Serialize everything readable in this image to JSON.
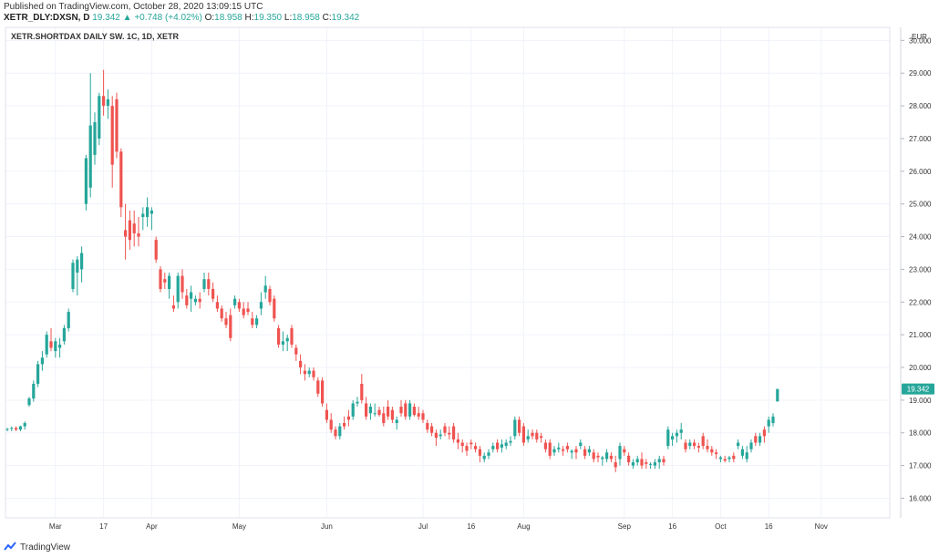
{
  "header": {
    "published": "Published on TradingView.com, October 28, 2020 13:09:15 UTC",
    "symbol": "XETR_DLY:DXSN, D",
    "last": "19.342",
    "change": "+0.748 (+4.02%)",
    "o_label": "O:",
    "o_value": "18.958",
    "h_label": "H:",
    "h_value": "19.350",
    "l_label": "L:",
    "l_value": "18.958",
    "c_label": "C:",
    "c_value": "19.342"
  },
  "footer": {
    "brand": "TradingView"
  },
  "colors": {
    "up": "#26a69a",
    "down": "#ef5350",
    "grid": "#f0f3fa",
    "axis": "#b2b5be"
  },
  "chart_data": {
    "type": "candlestick",
    "title": "XETR.SHORTDAX DAILY SW. 1C, 1D, XETR",
    "currency": "EUR",
    "last_price_label": "19.342",
    "ylim": [
      15.4,
      30.4
    ],
    "y_ticks": [
      "16.000",
      "17.000",
      "18.000",
      "19.000",
      "20.000",
      "21.000",
      "22.000",
      "23.000",
      "24.000",
      "25.000",
      "26.000",
      "27.000",
      "28.000",
      "29.000",
      "30.000"
    ],
    "x_ticks": [
      {
        "label": "Mar",
        "i": 11
      },
      {
        "label": "17",
        "i": 22
      },
      {
        "label": "Apr",
        "i": 33
      },
      {
        "label": "May",
        "i": 53
      },
      {
        "label": "Jun",
        "i": 73
      },
      {
        "label": "Jul",
        "i": 95
      },
      {
        "label": "16",
        "i": 106
      },
      {
        "label": "Aug",
        "i": 118
      },
      {
        "label": "Sep",
        "i": 141
      },
      {
        "label": "16",
        "i": 152
      },
      {
        "label": "Oct",
        "i": 163
      },
      {
        "label": "16",
        "i": 174
      },
      {
        "label": "Nov",
        "i": 186
      }
    ],
    "ohlc": [
      [
        18.1,
        18.15,
        18.05,
        18.12
      ],
      [
        18.12,
        18.2,
        18.05,
        18.15
      ],
      [
        18.15,
        18.2,
        18.05,
        18.1
      ],
      [
        18.1,
        18.22,
        18.05,
        18.2
      ],
      [
        18.2,
        18.35,
        18.1,
        18.3
      ],
      [
        18.85,
        19.1,
        18.8,
        19.05
      ],
      [
        19.05,
        19.6,
        18.95,
        19.5
      ],
      [
        19.5,
        20.2,
        19.4,
        20.1
      ],
      [
        20.1,
        20.5,
        19.9,
        20.3
      ],
      [
        20.4,
        21.1,
        20.3,
        21.0
      ],
      [
        20.8,
        21.2,
        20.5,
        20.6
      ],
      [
        20.5,
        20.9,
        20.3,
        20.8
      ],
      [
        20.6,
        20.9,
        20.3,
        20.7
      ],
      [
        20.8,
        21.3,
        20.7,
        21.2
      ],
      [
        21.2,
        21.8,
        21.1,
        21.7
      ],
      [
        22.4,
        23.3,
        22.3,
        23.2
      ],
      [
        22.9,
        23.4,
        22.2,
        23.3
      ],
      [
        23.0,
        23.7,
        22.6,
        23.5
      ],
      [
        25.0,
        26.5,
        24.8,
        26.4
      ],
      [
        25.5,
        29.0,
        25.2,
        27.4
      ],
      [
        26.5,
        27.8,
        26.2,
        27.5
      ],
      [
        27.0,
        28.4,
        26.8,
        28.3
      ],
      [
        28.3,
        29.1,
        27.7,
        28.0
      ],
      [
        28.0,
        28.5,
        27.6,
        28.2
      ],
      [
        28.0,
        28.3,
        25.5,
        26.2
      ],
      [
        28.2,
        28.4,
        26.4,
        26.6
      ],
      [
        26.6,
        26.7,
        24.6,
        24.9
      ],
      [
        24.2,
        25.0,
        23.3,
        24.0
      ],
      [
        24.5,
        24.8,
        23.6,
        23.9
      ],
      [
        24.4,
        24.8,
        23.7,
        24.1
      ],
      [
        24.1,
        24.6,
        23.7,
        24.0
      ],
      [
        24.6,
        24.9,
        24.2,
        24.7
      ],
      [
        24.6,
        25.2,
        24.3,
        24.9
      ],
      [
        24.7,
        24.9,
        24.2,
        24.8
      ],
      [
        23.9,
        24.0,
        23.2,
        23.3
      ],
      [
        23.0,
        23.1,
        22.3,
        22.4
      ],
      [
        22.7,
        22.9,
        22.4,
        22.6
      ],
      [
        22.4,
        22.9,
        22.1,
        22.8
      ],
      [
        21.9,
        22.2,
        21.7,
        21.8
      ],
      [
        22.0,
        22.9,
        21.8,
        22.8
      ],
      [
        22.8,
        23.0,
        22.1,
        22.3
      ],
      [
        22.2,
        22.4,
        21.8,
        21.9
      ],
      [
        22.1,
        22.5,
        21.7,
        22.3
      ],
      [
        22.0,
        22.2,
        21.9,
        22.1
      ],
      [
        22.1,
        22.3,
        21.8,
        22.0
      ],
      [
        22.4,
        22.9,
        22.3,
        22.7
      ],
      [
        22.7,
        22.9,
        22.2,
        22.4
      ],
      [
        22.4,
        22.6,
        22.0,
        22.1
      ],
      [
        22.0,
        22.2,
        21.7,
        21.8
      ],
      [
        21.8,
        21.9,
        21.4,
        21.5
      ],
      [
        21.5,
        21.7,
        21.2,
        21.3
      ],
      [
        21.6,
        21.8,
        20.8,
        20.9
      ],
      [
        21.9,
        22.2,
        21.8,
        22.1
      ],
      [
        22.0,
        22.1,
        21.7,
        21.8
      ],
      [
        21.8,
        22.0,
        21.5,
        21.6
      ],
      [
        21.8,
        22.0,
        21.6,
        21.7
      ],
      [
        21.5,
        21.7,
        21.2,
        21.3
      ],
      [
        21.3,
        21.6,
        21.2,
        21.5
      ],
      [
        21.8,
        22.3,
        21.6,
        22.0
      ],
      [
        22.3,
        22.8,
        22.1,
        22.5
      ],
      [
        22.4,
        22.5,
        21.9,
        22.0
      ],
      [
        22.1,
        22.2,
        21.4,
        21.5
      ],
      [
        21.2,
        21.3,
        20.6,
        20.7
      ],
      [
        20.7,
        21.1,
        20.5,
        20.8
      ],
      [
        20.8,
        21.0,
        20.5,
        20.9
      ],
      [
        21.2,
        21.3,
        20.6,
        20.7
      ],
      [
        20.6,
        20.7,
        20.2,
        20.4
      ],
      [
        20.2,
        20.4,
        19.8,
        20.0
      ],
      [
        19.9,
        20.1,
        19.6,
        19.8
      ],
      [
        19.8,
        20.0,
        19.7,
        19.9
      ],
      [
        19.9,
        20.0,
        19.6,
        19.7
      ],
      [
        19.6,
        19.7,
        19.1,
        19.2
      ],
      [
        19.6,
        19.7,
        18.8,
        18.9
      ],
      [
        18.7,
        18.9,
        18.3,
        18.4
      ],
      [
        18.4,
        18.6,
        18.0,
        18.1
      ],
      [
        18.1,
        18.2,
        17.8,
        17.9
      ],
      [
        17.9,
        18.3,
        17.8,
        18.2
      ],
      [
        18.3,
        18.5,
        18.1,
        18.2
      ],
      [
        18.5,
        18.7,
        18.2,
        18.4
      ],
      [
        18.5,
        19.0,
        18.4,
        18.9
      ],
      [
        18.9,
        19.1,
        18.8,
        18.95
      ],
      [
        19.5,
        19.8,
        18.9,
        19.0
      ],
      [
        18.9,
        19.1,
        18.4,
        18.5
      ],
      [
        18.6,
        18.9,
        18.4,
        18.8
      ],
      [
        18.6,
        18.9,
        18.5,
        18.6
      ],
      [
        18.7,
        18.8,
        18.5,
        18.55
      ],
      [
        18.6,
        18.8,
        18.2,
        18.3
      ],
      [
        18.8,
        19.0,
        18.4,
        18.5
      ],
      [
        18.7,
        18.8,
        18.3,
        18.4
      ],
      [
        18.3,
        18.5,
        18.1,
        18.4
      ],
      [
        18.8,
        19.0,
        18.5,
        18.6
      ],
      [
        18.9,
        19.0,
        18.4,
        18.5
      ],
      [
        18.5,
        19.0,
        18.4,
        18.9
      ],
      [
        18.8,
        18.9,
        18.5,
        18.55
      ],
      [
        18.6,
        18.8,
        18.4,
        18.5
      ],
      [
        18.6,
        18.7,
        18.3,
        18.4
      ],
      [
        18.3,
        18.4,
        18.0,
        18.1
      ],
      [
        18.2,
        18.3,
        17.9,
        18.0
      ],
      [
        18.0,
        18.1,
        17.6,
        17.85
      ],
      [
        17.9,
        18.1,
        17.8,
        17.95
      ],
      [
        18.2,
        18.3,
        17.9,
        18.0
      ],
      [
        18.0,
        18.2,
        17.8,
        17.95
      ],
      [
        18.2,
        18.3,
        17.7,
        17.8
      ],
      [
        17.8,
        18.0,
        17.5,
        17.7
      ],
      [
        17.7,
        17.8,
        17.4,
        17.6
      ],
      [
        17.6,
        17.7,
        17.3,
        17.45
      ],
      [
        17.7,
        17.8,
        17.5,
        17.65
      ],
      [
        17.6,
        17.7,
        17.4,
        17.5
      ],
      [
        17.5,
        17.6,
        17.1,
        17.3
      ],
      [
        17.2,
        17.4,
        17.1,
        17.3
      ],
      [
        17.3,
        17.5,
        17.2,
        17.4
      ],
      [
        17.5,
        17.7,
        17.4,
        17.6
      ],
      [
        17.7,
        17.8,
        17.4,
        17.5
      ],
      [
        17.55,
        17.8,
        17.4,
        17.65
      ],
      [
        17.6,
        17.8,
        17.5,
        17.7
      ],
      [
        17.7,
        17.9,
        17.6,
        17.75
      ],
      [
        17.9,
        18.5,
        17.8,
        18.4
      ],
      [
        18.4,
        18.5,
        17.9,
        18.0
      ],
      [
        18.2,
        18.3,
        17.6,
        17.7
      ],
      [
        17.8,
        18.1,
        17.7,
        17.9
      ],
      [
        18.0,
        18.1,
        17.8,
        17.9
      ],
      [
        18.0,
        18.1,
        17.7,
        17.8
      ],
      [
        17.9,
        18.0,
        17.7,
        17.85
      ],
      [
        17.7,
        17.8,
        17.4,
        17.5
      ],
      [
        17.7,
        17.8,
        17.2,
        17.3
      ],
      [
        17.4,
        17.6,
        17.3,
        17.5
      ],
      [
        17.5,
        17.7,
        17.4,
        17.55
      ],
      [
        17.5,
        17.6,
        17.3,
        17.45
      ],
      [
        17.6,
        17.7,
        17.4,
        17.5
      ],
      [
        17.4,
        17.5,
        17.2,
        17.45
      ],
      [
        17.5,
        17.6,
        17.2,
        17.4
      ],
      [
        17.6,
        17.8,
        17.5,
        17.7
      ],
      [
        17.5,
        17.6,
        17.2,
        17.3
      ],
      [
        17.4,
        17.6,
        17.3,
        17.5
      ],
      [
        17.4,
        17.5,
        17.1,
        17.2
      ],
      [
        17.3,
        17.4,
        17.1,
        17.25
      ],
      [
        17.2,
        17.3,
        17.0,
        17.25
      ],
      [
        17.2,
        17.5,
        17.1,
        17.4
      ],
      [
        17.3,
        17.4,
        17.1,
        17.2
      ],
      [
        17.1,
        17.3,
        16.8,
        16.95
      ],
      [
        17.2,
        17.7,
        17.0,
        17.6
      ],
      [
        17.5,
        17.6,
        17.3,
        17.4
      ],
      [
        17.3,
        17.4,
        17.0,
        17.1
      ],
      [
        17.0,
        17.2,
        16.9,
        17.1
      ],
      [
        17.1,
        17.3,
        17.0,
        17.2
      ],
      [
        17.2,
        17.4,
        16.9,
        17.0
      ],
      [
        17.1,
        17.2,
        16.9,
        17.05
      ],
      [
        17.05,
        17.1,
        16.9,
        17.05
      ],
      [
        17.0,
        17.2,
        16.9,
        17.1
      ],
      [
        17.1,
        17.3,
        16.9,
        17.2
      ],
      [
        17.2,
        17.3,
        17.0,
        17.1
      ],
      [
        17.6,
        18.2,
        17.5,
        18.1
      ],
      [
        17.8,
        18.0,
        17.6,
        17.9
      ],
      [
        17.9,
        18.1,
        17.7,
        18.0
      ],
      [
        18.0,
        18.3,
        17.8,
        18.1
      ],
      [
        17.7,
        17.8,
        17.4,
        17.5
      ],
      [
        17.6,
        17.8,
        17.5,
        17.7
      ],
      [
        17.7,
        17.8,
        17.5,
        17.6
      ],
      [
        17.6,
        17.7,
        17.4,
        17.55
      ],
      [
        17.9,
        18.0,
        17.5,
        17.6
      ],
      [
        17.6,
        17.8,
        17.4,
        17.5
      ],
      [
        17.5,
        17.6,
        17.3,
        17.4
      ],
      [
        17.4,
        17.5,
        17.2,
        17.35
      ],
      [
        17.2,
        17.3,
        17.1,
        17.25
      ],
      [
        17.2,
        17.3,
        17.1,
        17.15
      ],
      [
        17.2,
        17.3,
        17.1,
        17.25
      ],
      [
        17.3,
        17.4,
        17.1,
        17.2
      ],
      [
        17.6,
        17.8,
        17.5,
        17.7
      ],
      [
        17.3,
        17.6,
        17.2,
        17.5
      ],
      [
        17.2,
        17.6,
        17.1,
        17.4
      ],
      [
        17.5,
        17.8,
        17.4,
        17.7
      ],
      [
        17.9,
        18.0,
        17.6,
        17.7
      ],
      [
        17.7,
        18.0,
        17.6,
        17.9
      ],
      [
        18.1,
        18.2,
        17.7,
        17.9
      ],
      [
        18.2,
        18.5,
        18.0,
        18.4
      ],
      [
        18.3,
        18.6,
        18.2,
        18.5
      ],
      [
        18.96,
        19.35,
        18.96,
        19.34
      ]
    ]
  }
}
